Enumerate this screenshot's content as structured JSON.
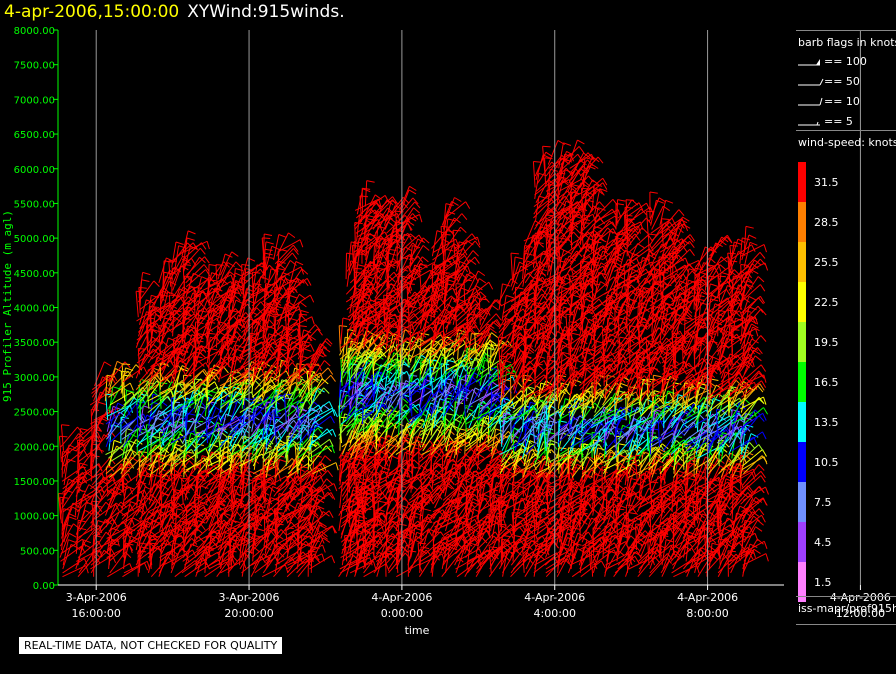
{
  "header": {
    "date_time": "4-apr-2006,15:00:00",
    "product": "XYWind:915winds."
  },
  "legend": {
    "barb_title": "barb flags in knots",
    "barb_items": [
      "== 100",
      "== 50",
      "== 10",
      "== 5"
    ],
    "speed_title": "wind-speed: knots",
    "speed_labels": [
      "31.5",
      "28.5",
      "25.5",
      "22.5",
      "19.5",
      "16.5",
      "13.5",
      "10.5",
      "7.5",
      "4.5",
      "1.5"
    ],
    "speed_colors": [
      "#ff0000",
      "#ff7f00",
      "#ffbf00",
      "#ffff00",
      "#a0ff20",
      "#00ff00",
      "#00ffff",
      "#0000ff",
      "#6f8fff",
      "#9f3fff",
      "#ff7fff"
    ],
    "source": "iss-mapr/prof915h"
  },
  "notice": "REAL-TIME DATA, NOT CHECKED FOR QUALITY",
  "chart_data": {
    "type": "scatter",
    "title": "4-apr-2006,15:00:00 XYWind:915winds.",
    "xlabel": "time",
    "ylabel": "915 Profiler Altitude (m agl)",
    "ylim": [
      0,
      8000
    ],
    "y_ticks": [
      "0.00",
      "500.00",
      "1000.00",
      "1500.00",
      "2000.00",
      "2500.00",
      "3000.00",
      "3500.00",
      "4000.00",
      "4500.00",
      "5000.00",
      "5500.00",
      "6000.00",
      "6500.00",
      "7000.00",
      "7500.00",
      "8000.00"
    ],
    "x_ticks": [
      {
        "date": "3-Apr-2006",
        "time": "16:00:00"
      },
      {
        "date": "3-Apr-2006",
        "time": "20:00:00"
      },
      {
        "date": "4-Apr-2006",
        "time": "0:00:00"
      },
      {
        "date": "4-Apr-2006",
        "time": "4:00:00"
      },
      {
        "date": "4-Apr-2006",
        "time": "8:00:00"
      },
      {
        "date": "4-Apr-2006",
        "time": "12:00:00"
      }
    ],
    "xlim_hours": [
      -1,
      18
    ],
    "grid": "vertical",
    "series_note": "wind barbs colored by wind speed (knots)",
    "profiles": [
      {
        "t": -0.9,
        "top": 2000
      },
      {
        "t": -0.5,
        "top": 2100
      },
      {
        "t": -0.1,
        "top": 2900
      },
      {
        "t": 0.3,
        "top": 2950
      },
      {
        "t": 0.7,
        "top": 2950
      },
      {
        "t": 1.1,
        "top": 4150
      },
      {
        "t": 1.4,
        "top": 4000
      },
      {
        "t": 1.7,
        "top": 4400
      },
      {
        "t": 2.0,
        "top": 4700
      },
      {
        "t": 2.3,
        "top": 4800
      },
      {
        "t": 2.6,
        "top": 4200
      },
      {
        "t": 2.9,
        "top": 4400
      },
      {
        "t": 3.2,
        "top": 4500
      },
      {
        "t": 3.5,
        "top": 4200
      },
      {
        "t": 3.8,
        "top": 4500
      },
      {
        "t": 4.1,
        "top": 4350
      },
      {
        "t": 4.4,
        "top": 4700
      },
      {
        "t": 4.7,
        "top": 4800
      },
      {
        "t": 5.0,
        "top": 4300
      },
      {
        "t": 5.3,
        "top": 3600
      },
      {
        "t": 5.6,
        "top": 3300
      },
      {
        "t": 6.4,
        "top": 3500
      },
      {
        "t": 6.6,
        "top": 4600
      },
      {
        "t": 6.8,
        "top": 5400
      },
      {
        "t": 7.0,
        "top": 5500
      },
      {
        "t": 7.3,
        "top": 5350
      },
      {
        "t": 7.6,
        "top": 5300
      },
      {
        "t": 7.9,
        "top": 5400
      },
      {
        "t": 8.2,
        "top": 4700
      },
      {
        "t": 8.5,
        "top": 4300
      },
      {
        "t": 8.8,
        "top": 4900
      },
      {
        "t": 9.1,
        "top": 5300
      },
      {
        "t": 9.4,
        "top": 4900
      },
      {
        "t": 9.7,
        "top": 4200
      },
      {
        "t": 10.0,
        "top": 3900
      },
      {
        "t": 10.3,
        "top": 3300
      },
      {
        "t": 10.6,
        "top": 4100
      },
      {
        "t": 10.9,
        "top": 4500
      },
      {
        "t": 11.2,
        "top": 5000
      },
      {
        "t": 11.5,
        "top": 5900
      },
      {
        "t": 11.8,
        "top": 6100
      },
      {
        "t": 12.1,
        "top": 6100
      },
      {
        "t": 12.4,
        "top": 6100
      },
      {
        "t": 12.7,
        "top": 5900
      },
      {
        "t": 13.0,
        "top": 5400
      },
      {
        "t": 13.3,
        "top": 4900
      },
      {
        "t": 13.6,
        "top": 5300
      },
      {
        "t": 13.9,
        "top": 5300
      },
      {
        "t": 14.2,
        "top": 4500
      },
      {
        "t": 14.5,
        "top": 5300
      },
      {
        "t": 14.8,
        "top": 5200
      },
      {
        "t": 15.1,
        "top": 5000
      },
      {
        "t": 15.4,
        "top": 4200
      },
      {
        "t": 15.7,
        "top": 4600
      },
      {
        "t": 16.0,
        "top": 4800
      },
      {
        "t": 16.3,
        "top": 4300
      },
      {
        "t": 16.6,
        "top": 4700
      },
      {
        "t": 16.9,
        "top": 4800
      }
    ],
    "slow_layer": [
      {
        "t_start": 0.0,
        "t_end": 6.0,
        "low": 1500,
        "high": 2900
      },
      {
        "t_start": 6.3,
        "t_end": 10.5,
        "low": 1800,
        "high": 3400
      },
      {
        "t_start": 10.5,
        "t_end": 17.0,
        "low": 1500,
        "high": 2700
      }
    ]
  }
}
